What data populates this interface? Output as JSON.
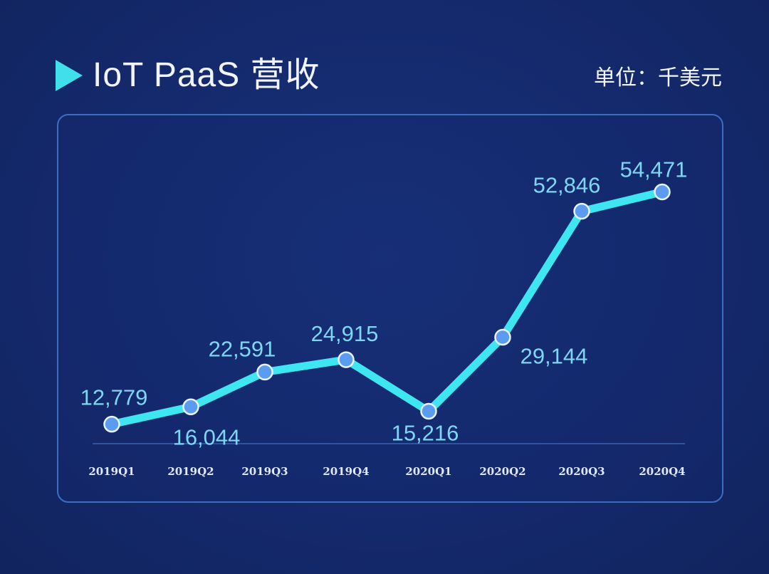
{
  "header": {
    "title": "IoT PaaS 营收",
    "unit": "单位：千美元"
  },
  "colors": {
    "background": "#14296b",
    "line": "#3de6f0",
    "marker": "#5b9cf0",
    "label": "#7fd6f2",
    "accent": "#3fe0ec"
  },
  "chart_data": {
    "type": "line",
    "title": "IoT PaaS 营收",
    "unit": "单位：千美元",
    "categories": [
      "2019Q1",
      "2019Q2",
      "2019Q3",
      "2019Q4",
      "2020Q1",
      "2020Q2",
      "2020Q3",
      "2020Q4"
    ],
    "values": [
      12779,
      16044,
      22591,
      24915,
      15216,
      29144,
      52846,
      54471
    ],
    "value_labels": [
      "12,779",
      "16,044",
      "22,591",
      "24,915",
      "15,216",
      "29,144",
      "52,846",
      "54,471"
    ],
    "xlabel": "",
    "ylabel": "",
    "grid": false,
    "legend": "none"
  }
}
